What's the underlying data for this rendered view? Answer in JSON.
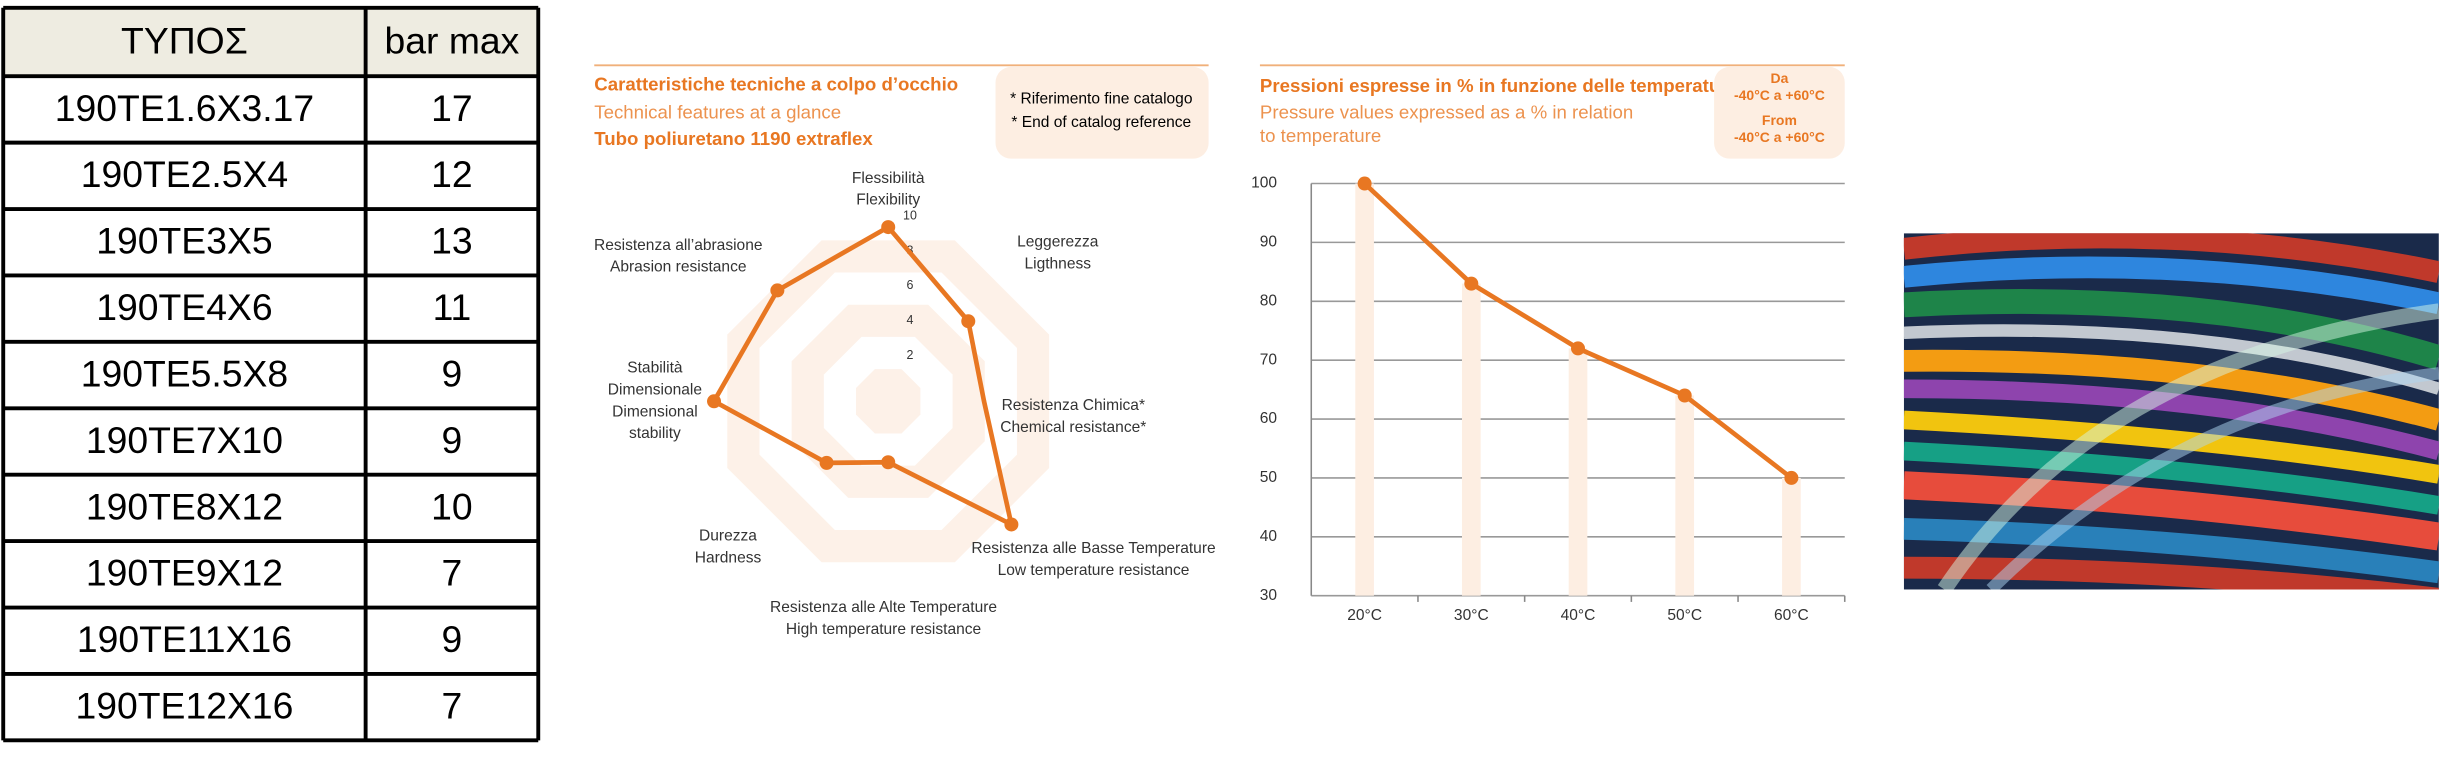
{
  "table": {
    "header": [
      "ΤΥΠΟΣ",
      "bar max"
    ],
    "rows": [
      [
        "190TE1.6X3.17",
        "17"
      ],
      [
        "190TE2.5X4",
        "12"
      ],
      [
        "190TE3X5",
        "13"
      ],
      [
        "190TE4X6",
        "11"
      ],
      [
        "190TE5.5X8",
        "9"
      ],
      [
        "190TE7X10",
        "9"
      ],
      [
        "190TE8X12",
        "10"
      ],
      [
        "190TE9X12",
        "7"
      ],
      [
        "190TE11X16",
        "9"
      ],
      [
        "190TE12X16",
        "7"
      ]
    ]
  },
  "chart_data": [
    {
      "type": "radar",
      "title": "Caratteristiche tecniche a colpo d’occhio",
      "subtitle": "Technical features at a glance",
      "product": "Tubo poliuretano 1190 extraflex",
      "notes": [
        "* Riferimento fine catalogo",
        "* End of catalog reference"
      ],
      "categories": [
        [
          "Flessibilità",
          "Flexibility"
        ],
        [
          "Leggerezza",
          "Ligthness"
        ],
        [
          "Resistenza Chimica*",
          "Chemical resistance*"
        ],
        [
          "Resistenza alle Basse Temperature",
          "Low temperature resistance"
        ],
        [
          "Resistenza alle Alte Temperature",
          "High temperature resistance"
        ],
        [
          "Durezza",
          "Hardness"
        ],
        [
          "Stabilità",
          "Dimensionale",
          "Dimensional",
          "stability"
        ],
        [
          "Resistenza all’abrasione",
          "Abrasion resistance"
        ]
      ],
      "values": [
        10,
        6.5,
        5.5,
        10,
        3.5,
        5,
        10,
        9
      ],
      "color": "#e87722",
      "rlim": [
        0,
        10
      ],
      "rticks": [
        2,
        4,
        6,
        8,
        10
      ]
    },
    {
      "type": "line",
      "title": "Pressioni espresse in % in funzione delle temperature",
      "subtitle": [
        "Pressure values expressed as a % in relation",
        "to temperature"
      ],
      "range_note": [
        "Da",
        "-40°C a +60°C",
        "From",
        "-40°C a +60°C"
      ],
      "categories": [
        "20°C",
        "30°C",
        "40°C",
        "50°C",
        "60°C"
      ],
      "values": [
        100,
        83,
        72,
        64,
        50
      ],
      "color": "#e87722",
      "ylim": [
        30,
        100
      ],
      "yticks": [
        30,
        40,
        50,
        60,
        70,
        80,
        90,
        100
      ],
      "grid": true
    }
  ]
}
